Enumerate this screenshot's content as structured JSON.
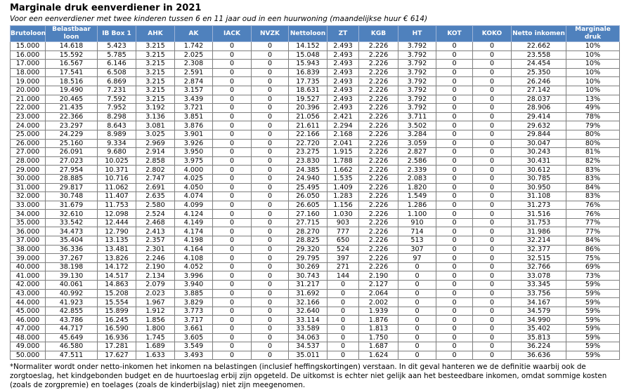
{
  "header": {
    "title": "Marginale druk eenverdiener in 2021",
    "subtitle": "Voor een eenverdiener met twee kinderen tussen 6 en 11 jaar oud in een huurwoning (maandelijkse huur € 614)"
  },
  "table": {
    "columns": [
      "Brutoloon",
      "Belastbaar loon",
      "IB Box 1",
      "AHK",
      "AK",
      "IACK",
      "NVZK",
      "Nettoloon",
      "ZT",
      "KGB",
      "HT",
      "KOT",
      "KOKO",
      "Netto inkomen",
      "Marginale druk"
    ],
    "rows": [
      [
        "15.000",
        "14.618",
        "5.423",
        "3.215",
        "1.742",
        "0",
        "0",
        "14.152",
        "2.493",
        "2.226",
        "3.792",
        "0",
        "0",
        "22.662",
        "10%"
      ],
      [
        "16.000",
        "15.592",
        "5.785",
        "3.215",
        "2.025",
        "0",
        "0",
        "15.048",
        "2.493",
        "2.226",
        "3.792",
        "0",
        "0",
        "23.558",
        "10%"
      ],
      [
        "17.000",
        "16.567",
        "6.146",
        "3.215",
        "2.308",
        "0",
        "0",
        "15.943",
        "2.493",
        "2.226",
        "3.792",
        "0",
        "0",
        "24.454",
        "10%"
      ],
      [
        "18.000",
        "17.541",
        "6.508",
        "3.215",
        "2.591",
        "0",
        "0",
        "16.839",
        "2.493",
        "2.226",
        "3.792",
        "0",
        "0",
        "25.350",
        "10%"
      ],
      [
        "19.000",
        "18.516",
        "6.869",
        "3.215",
        "2.874",
        "0",
        "0",
        "17.735",
        "2.493",
        "2.226",
        "3.792",
        "0",
        "0",
        "26.246",
        "10%"
      ],
      [
        "20.000",
        "19.490",
        "7.231",
        "3.215",
        "3.157",
        "0",
        "0",
        "18.631",
        "2.493",
        "2.226",
        "3.792",
        "0",
        "0",
        "27.142",
        "10%"
      ],
      [
        "21.000",
        "20.465",
        "7.592",
        "3.215",
        "3.439",
        "0",
        "0",
        "19.527",
        "2.493",
        "2.226",
        "3.792",
        "0",
        "0",
        "28.037",
        "13%"
      ],
      [
        "22.000",
        "21.435",
        "7.952",
        "3.192",
        "3.721",
        "0",
        "0",
        "20.396",
        "2.493",
        "2.226",
        "3.792",
        "0",
        "0",
        "28.906",
        "49%"
      ],
      [
        "23.000",
        "22.366",
        "8.298",
        "3.136",
        "3.851",
        "0",
        "0",
        "21.056",
        "2.421",
        "2.226",
        "3.711",
        "0",
        "0",
        "29.414",
        "78%"
      ],
      [
        "24.000",
        "23.297",
        "8.643",
        "3.081",
        "3.876",
        "0",
        "0",
        "21.611",
        "2.294",
        "2.226",
        "3.502",
        "0",
        "0",
        "29.632",
        "79%"
      ],
      [
        "25.000",
        "24.229",
        "8.989",
        "3.025",
        "3.901",
        "0",
        "0",
        "22.166",
        "2.168",
        "2.226",
        "3.284",
        "0",
        "0",
        "29.844",
        "80%"
      ],
      [
        "26.000",
        "25.160",
        "9.334",
        "2.969",
        "3.926",
        "0",
        "0",
        "22.720",
        "2.041",
        "2.226",
        "3.059",
        "0",
        "0",
        "30.047",
        "80%"
      ],
      [
        "27.000",
        "26.091",
        "9.680",
        "2.914",
        "3.950",
        "0",
        "0",
        "23.275",
        "1.915",
        "2.226",
        "2.827",
        "0",
        "0",
        "30.243",
        "81%"
      ],
      [
        "28.000",
        "27.023",
        "10.025",
        "2.858",
        "3.975",
        "0",
        "0",
        "23.830",
        "1.788",
        "2.226",
        "2.586",
        "0",
        "0",
        "30.431",
        "82%"
      ],
      [
        "29.000",
        "27.954",
        "10.371",
        "2.802",
        "4.000",
        "0",
        "0",
        "24.385",
        "1.662",
        "2.226",
        "2.339",
        "0",
        "0",
        "30.612",
        "83%"
      ],
      [
        "30.000",
        "28.885",
        "10.716",
        "2.747",
        "4.025",
        "0",
        "0",
        "24.940",
        "1.535",
        "2.226",
        "2.083",
        "0",
        "0",
        "30.785",
        "83%"
      ],
      [
        "31.000",
        "29.817",
        "11.062",
        "2.691",
        "4.050",
        "0",
        "0",
        "25.495",
        "1.409",
        "2.226",
        "1.820",
        "0",
        "0",
        "30.950",
        "84%"
      ],
      [
        "32.000",
        "30.748",
        "11.407",
        "2.635",
        "4.074",
        "0",
        "0",
        "26.050",
        "1.283",
        "2.226",
        "1.549",
        "0",
        "0",
        "31.108",
        "83%"
      ],
      [
        "33.000",
        "31.679",
        "11.753",
        "2.580",
        "4.099",
        "0",
        "0",
        "26.605",
        "1.156",
        "2.226",
        "1.286",
        "0",
        "0",
        "31.273",
        "76%"
      ],
      [
        "34.000",
        "32.610",
        "12.098",
        "2.524",
        "4.124",
        "0",
        "0",
        "27.160",
        "1.030",
        "2.226",
        "1.100",
        "0",
        "0",
        "31.516",
        "76%"
      ],
      [
        "35.000",
        "33.542",
        "12.444",
        "2.468",
        "4.149",
        "0",
        "0",
        "27.715",
        "903",
        "2.226",
        "910",
        "0",
        "0",
        "31.753",
        "77%"
      ],
      [
        "36.000",
        "34.473",
        "12.790",
        "2.413",
        "4.174",
        "0",
        "0",
        "28.270",
        "777",
        "2.226",
        "714",
        "0",
        "0",
        "31.986",
        "77%"
      ],
      [
        "37.000",
        "35.404",
        "13.135",
        "2.357",
        "4.198",
        "0",
        "0",
        "28.825",
        "650",
        "2.226",
        "513",
        "0",
        "0",
        "32.214",
        "84%"
      ],
      [
        "38.000",
        "36.336",
        "13.481",
        "2.301",
        "4.164",
        "0",
        "0",
        "29.320",
        "524",
        "2.226",
        "307",
        "0",
        "0",
        "32.377",
        "86%"
      ],
      [
        "39.000",
        "37.267",
        "13.826",
        "2.246",
        "4.108",
        "0",
        "0",
        "29.795",
        "397",
        "2.226",
        "97",
        "0",
        "0",
        "32.515",
        "75%"
      ],
      [
        "40.000",
        "38.198",
        "14.172",
        "2.190",
        "4.052",
        "0",
        "0",
        "30.269",
        "271",
        "2.226",
        "0",
        "0",
        "0",
        "32.766",
        "69%"
      ],
      [
        "41.000",
        "39.130",
        "14.517",
        "2.134",
        "3.996",
        "0",
        "0",
        "30.743",
        "144",
        "2.190",
        "0",
        "0",
        "0",
        "33.078",
        "73%"
      ],
      [
        "42.000",
        "40.061",
        "14.863",
        "2.079",
        "3.940",
        "0",
        "0",
        "31.217",
        "0",
        "2.127",
        "0",
        "0",
        "0",
        "33.345",
        "59%"
      ],
      [
        "43.000",
        "40.992",
        "15.208",
        "2.023",
        "3.885",
        "0",
        "0",
        "31.692",
        "0",
        "2.064",
        "0",
        "0",
        "0",
        "33.756",
        "59%"
      ],
      [
        "44.000",
        "41.923",
        "15.554",
        "1.967",
        "3.829",
        "0",
        "0",
        "32.166",
        "0",
        "2.002",
        "0",
        "0",
        "0",
        "34.167",
        "59%"
      ],
      [
        "45.000",
        "42.855",
        "15.899",
        "1.912",
        "3.773",
        "0",
        "0",
        "32.640",
        "0",
        "1.939",
        "0",
        "0",
        "0",
        "34.579",
        "59%"
      ],
      [
        "46.000",
        "43.786",
        "16.245",
        "1.856",
        "3.717",
        "0",
        "0",
        "33.114",
        "0",
        "1.876",
        "0",
        "0",
        "0",
        "34.990",
        "59%"
      ],
      [
        "47.000",
        "44.717",
        "16.590",
        "1.800",
        "3.661",
        "0",
        "0",
        "33.589",
        "0",
        "1.813",
        "0",
        "0",
        "0",
        "35.402",
        "59%"
      ],
      [
        "48.000",
        "45.649",
        "16.936",
        "1.745",
        "3.605",
        "0",
        "0",
        "34.063",
        "0",
        "1.750",
        "0",
        "0",
        "0",
        "35.813",
        "59%"
      ],
      [
        "49.000",
        "46.580",
        "17.281",
        "1.689",
        "3.549",
        "0",
        "0",
        "34.537",
        "0",
        "1.687",
        "0",
        "0",
        "0",
        "36.224",
        "59%"
      ],
      [
        "50.000",
        "47.511",
        "17.627",
        "1.633",
        "3.493",
        "0",
        "0",
        "35.011",
        "0",
        "1.624",
        "0",
        "0",
        "0",
        "36.636",
        "59%"
      ]
    ]
  },
  "footnote": "*Normaliter wordt onder netto-inkomen het inkomen na belastingen (inclusief heffingskortingen) verstaan. In dit geval hanteren we de definitie waarbij ook de zorgtoeslag, het kindgebonden budget en de huurtoeslag erbij zijn opgeteld. De uitkomst is echter niet gelijk aan het besteedbare inkomen, omdat sommige kosten (zoals de zorgpremie) en toelages (zoals de kinderbijslag) niet zijn meegenomen."
}
